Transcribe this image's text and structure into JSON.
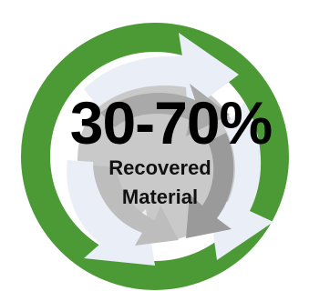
{
  "badge": {
    "headline": "30-70%",
    "line1": "Recovered",
    "line2": "Material",
    "icon": "recycle-arrows-icon",
    "colors": {
      "ring": "#4c9a35",
      "ring_dark": "#3f8a2a",
      "arrow_light": "#e9eef7",
      "arrow_gray": "#b9b9b9",
      "arrow_gray_dark": "#9a9a9a",
      "text": "#000000"
    }
  }
}
